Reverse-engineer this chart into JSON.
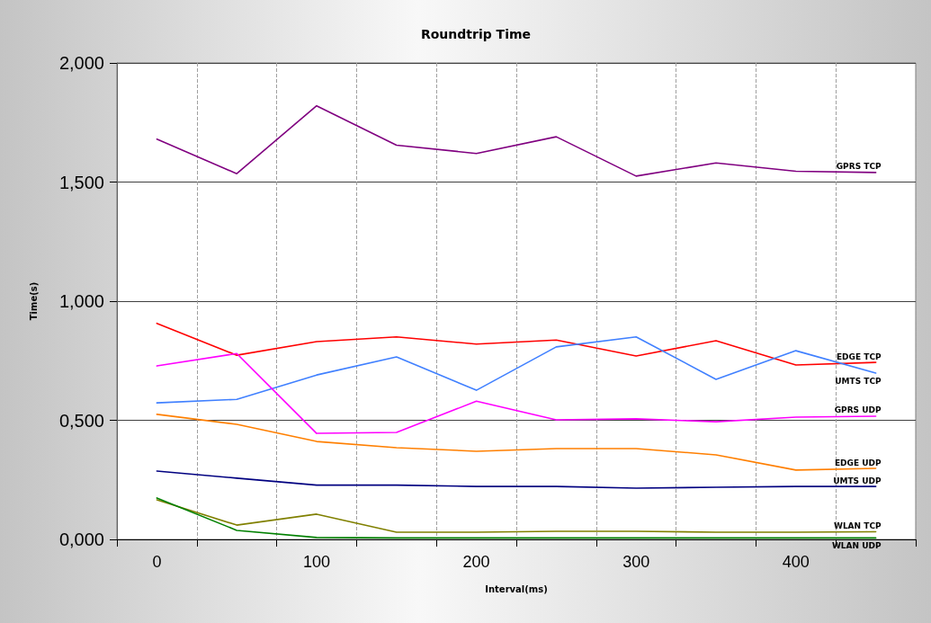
{
  "chart_data": {
    "type": "line",
    "title": "Roundtrip Time",
    "xlabel": "Interval(ms)",
    "ylabel": "Time(s)",
    "x": [
      0,
      50,
      100,
      150,
      200,
      250,
      300,
      350,
      400,
      450
    ],
    "series": [
      {
        "name": "GPRS TCP",
        "color": "#800080",
        "values": [
          1.68,
          1.535,
          1.82,
          1.655,
          1.62,
          1.69,
          1.525,
          1.58,
          1.545,
          1.54
        ]
      },
      {
        "name": "EDGE TCP",
        "color": "#ff0000",
        "values": [
          0.907,
          0.773,
          0.83,
          0.85,
          0.82,
          0.837,
          0.77,
          0.834,
          0.732,
          0.743
        ]
      },
      {
        "name": "UMTS TCP",
        "color": "#4080ff",
        "values": [
          0.573,
          0.588,
          0.69,
          0.766,
          0.626,
          0.808,
          0.85,
          0.672,
          0.792,
          0.698
        ]
      },
      {
        "name": "GPRS UDP",
        "color": "#ff00ff",
        "values": [
          0.728,
          0.78,
          0.445,
          0.449,
          0.58,
          0.502,
          0.506,
          0.494,
          0.513,
          0.517
        ]
      },
      {
        "name": "EDGE UDP",
        "color": "#ff7f00",
        "values": [
          0.525,
          0.483,
          0.411,
          0.385,
          0.37,
          0.381,
          0.381,
          0.355,
          0.291,
          0.298
        ]
      },
      {
        "name": "UMTS UDP",
        "color": "#000080",
        "values": [
          0.287,
          0.257,
          0.228,
          0.228,
          0.222,
          0.222,
          0.215,
          0.219,
          0.222,
          0.222
        ]
      },
      {
        "name": "WLAN TCP",
        "color": "#808000",
        "values": [
          0.166,
          0.06,
          0.106,
          0.03,
          0.03,
          0.034,
          0.034,
          0.03,
          0.03,
          0.032
        ]
      },
      {
        "name": "WLAN UDP",
        "color": "#008000",
        "values": [
          0.174,
          0.038,
          0.008,
          0.006,
          0.006,
          0.006,
          0.006,
          0.006,
          0.006,
          0.006
        ]
      }
    ],
    "xlim": [
      -25,
      475
    ],
    "xticks": [
      {
        "value": -25,
        "label": null
      },
      0,
      {
        "value": 25,
        "label": null
      },
      {
        "value": 75,
        "label": null
      },
      100,
      {
        "value": 125,
        "label": null
      },
      {
        "value": 175,
        "label": null
      },
      200,
      {
        "value": 225,
        "label": null
      },
      {
        "value": 275,
        "label": null
      },
      300,
      {
        "value": 325,
        "label": null
      },
      {
        "value": 375,
        "label": null
      },
      400,
      {
        "value": 425,
        "label": null
      },
      {
        "value": 475,
        "label": null
      }
    ],
    "ylim": [
      0,
      2
    ],
    "yticks": [
      {
        "value": 0,
        "label": "0,000"
      },
      {
        "value": 0.5,
        "label": "0,500"
      },
      {
        "value": 1,
        "label": "1,000"
      },
      {
        "value": 1.5,
        "label": "1,500"
      },
      {
        "value": 2,
        "label": "2,000"
      }
    ],
    "grid": true,
    "legend": false,
    "marker": "none",
    "line_style": "solid"
  }
}
